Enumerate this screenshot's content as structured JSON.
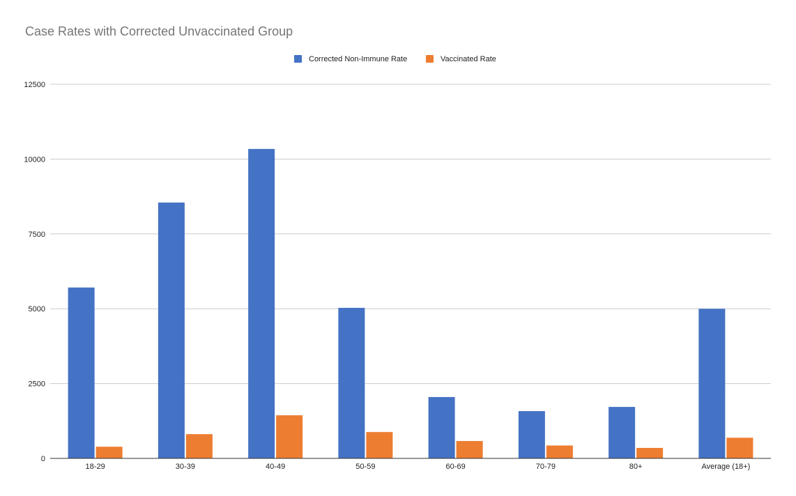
{
  "chart_data": {
    "type": "bar",
    "title": "Case Rates with Corrected Unvaccinated Group",
    "xlabel": "",
    "ylabel": "",
    "ylim": [
      0,
      12500
    ],
    "yticks": [
      0,
      2500,
      5000,
      7500,
      10000,
      12500
    ],
    "grid": true,
    "legend_position": "top-center",
    "categories": [
      "18-29",
      "30-39",
      "40-49",
      "50-59",
      "60-69",
      "70-79",
      "80+",
      "Average (18+)"
    ],
    "series": [
      {
        "name": "Corrected Non-Immune Rate",
        "color": "#4472c4",
        "values": [
          5710,
          8550,
          10340,
          5030,
          2050,
          1580,
          1720,
          5000
        ]
      },
      {
        "name": "Vaccinated Rate",
        "color": "#ed7d31",
        "values": [
          390,
          810,
          1440,
          880,
          580,
          430,
          350,
          690
        ]
      }
    ]
  }
}
